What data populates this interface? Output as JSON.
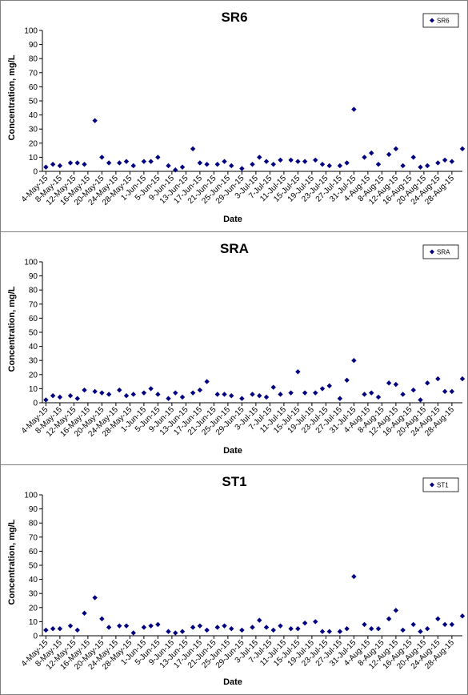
{
  "chart_data": [
    {
      "type": "scatter",
      "title": "SR6",
      "xlabel": "Date",
      "ylabel": "Concentration, mg/L",
      "ylim": [
        0,
        100
      ],
      "yticks": [
        0,
        10,
        20,
        30,
        40,
        50,
        60,
        70,
        80,
        90,
        100
      ],
      "xlim": [
        "2015-05-03",
        "2015-08-31"
      ],
      "xticks": [
        "4-May-15",
        "8-May-15",
        "12-May-15",
        "16-May-15",
        "20-May-15",
        "24-May-15",
        "28-May-15",
        "1-Jun-15",
        "5-Jun-15",
        "9-Jun-15",
        "13-Jun-15",
        "17-Jun-15",
        "21-Jun-15",
        "25-Jun-15",
        "29-Jun-15",
        "3-Jul-15",
        "7-Jul-15",
        "11-Jul-15",
        "15-Jul-15",
        "19-Jul-15",
        "23-Jul-15",
        "27-Jul-15",
        "31-Jul-15",
        "4-Aug-15",
        "8-Aug-15",
        "12-Aug-15",
        "16-Aug-15",
        "20-Aug-15",
        "24-Aug-15",
        "28-Aug-15"
      ],
      "legend": "top-right",
      "color": "#000080",
      "series": [
        {
          "name": "SR6",
          "points": [
            [
              "2015-05-04",
              3
            ],
            [
              "2015-05-06",
              5
            ],
            [
              "2015-05-08",
              4
            ],
            [
              "2015-05-11",
              6
            ],
            [
              "2015-05-13",
              6
            ],
            [
              "2015-05-15",
              5
            ],
            [
              "2015-05-18",
              36
            ],
            [
              "2015-05-20",
              10
            ],
            [
              "2015-05-22",
              6
            ],
            [
              "2015-05-25",
              6
            ],
            [
              "2015-05-27",
              7
            ],
            [
              "2015-05-29",
              4
            ],
            [
              "2015-06-01",
              7
            ],
            [
              "2015-06-03",
              7
            ],
            [
              "2015-06-05",
              10
            ],
            [
              "2015-06-08",
              4
            ],
            [
              "2015-06-10",
              1
            ],
            [
              "2015-06-12",
              3
            ],
            [
              "2015-06-15",
              16
            ],
            [
              "2015-06-17",
              6
            ],
            [
              "2015-06-19",
              5
            ],
            [
              "2015-06-22",
              5
            ],
            [
              "2015-06-24",
              7
            ],
            [
              "2015-06-26",
              4
            ],
            [
              "2015-06-29",
              2
            ],
            [
              "2015-07-02",
              5
            ],
            [
              "2015-07-04",
              10
            ],
            [
              "2015-07-06",
              7
            ],
            [
              "2015-07-08",
              5
            ],
            [
              "2015-07-10",
              8
            ],
            [
              "2015-07-13",
              8
            ],
            [
              "2015-07-15",
              7
            ],
            [
              "2015-07-17",
              7
            ],
            [
              "2015-07-20",
              8
            ],
            [
              "2015-07-22",
              5
            ],
            [
              "2015-07-24",
              4
            ],
            [
              "2015-07-27",
              4
            ],
            [
              "2015-07-29",
              6
            ],
            [
              "2015-07-31",
              44
            ],
            [
              "2015-08-03",
              10
            ],
            [
              "2015-08-05",
              13
            ],
            [
              "2015-08-07",
              5
            ],
            [
              "2015-08-10",
              12
            ],
            [
              "2015-08-12",
              16
            ],
            [
              "2015-08-14",
              4
            ],
            [
              "2015-08-17",
              10
            ],
            [
              "2015-08-19",
              3
            ],
            [
              "2015-08-21",
              4
            ],
            [
              "2015-08-24",
              6
            ],
            [
              "2015-08-26",
              8
            ],
            [
              "2015-08-28",
              7
            ],
            [
              "2015-08-31",
              16
            ]
          ]
        }
      ]
    },
    {
      "type": "scatter",
      "title": "SRA",
      "xlabel": "Date",
      "ylabel": "Concentration, mg/L",
      "ylim": [
        0,
        100
      ],
      "yticks": [
        0,
        10,
        20,
        30,
        40,
        50,
        60,
        70,
        80,
        90,
        100
      ],
      "xlim": [
        "2015-05-03",
        "2015-08-31"
      ],
      "xticks": [
        "4-May-15",
        "8-May-15",
        "12-May-15",
        "16-May-15",
        "20-May-15",
        "24-May-15",
        "28-May-15",
        "1-Jun-15",
        "5-Jun-15",
        "9-Jun-15",
        "13-Jun-15",
        "17-Jun-15",
        "21-Jun-15",
        "25-Jun-15",
        "29-Jun-15",
        "3-Jul-15",
        "7-Jul-15",
        "11-Jul-15",
        "15-Jul-15",
        "19-Jul-15",
        "23-Jul-15",
        "27-Jul-15",
        "31-Jul-15",
        "4-Aug-15",
        "8-Aug-15",
        "12-Aug-15",
        "16-Aug-15",
        "20-Aug-15",
        "24-Aug-15",
        "28-Aug-15"
      ],
      "legend": "top-right",
      "color": "#000080",
      "series": [
        {
          "name": "SRA",
          "points": [
            [
              "2015-05-04",
              2
            ],
            [
              "2015-05-06",
              5
            ],
            [
              "2015-05-08",
              4
            ],
            [
              "2015-05-11",
              5
            ],
            [
              "2015-05-13",
              3
            ],
            [
              "2015-05-15",
              9
            ],
            [
              "2015-05-18",
              8
            ],
            [
              "2015-05-20",
              7
            ],
            [
              "2015-05-22",
              6
            ],
            [
              "2015-05-25",
              9
            ],
            [
              "2015-05-27",
              5
            ],
            [
              "2015-05-29",
              6
            ],
            [
              "2015-06-01",
              7
            ],
            [
              "2015-06-03",
              10
            ],
            [
              "2015-06-05",
              6
            ],
            [
              "2015-06-08",
              3
            ],
            [
              "2015-06-10",
              7
            ],
            [
              "2015-06-12",
              4
            ],
            [
              "2015-06-15",
              7
            ],
            [
              "2015-06-17",
              9
            ],
            [
              "2015-06-19",
              15
            ],
            [
              "2015-06-22",
              6
            ],
            [
              "2015-06-24",
              6
            ],
            [
              "2015-06-26",
              5
            ],
            [
              "2015-06-29",
              3
            ],
            [
              "2015-07-02",
              6
            ],
            [
              "2015-07-04",
              5
            ],
            [
              "2015-07-06",
              4
            ],
            [
              "2015-07-08",
              11
            ],
            [
              "2015-07-10",
              6
            ],
            [
              "2015-07-13",
              7
            ],
            [
              "2015-07-15",
              22
            ],
            [
              "2015-07-17",
              7
            ],
            [
              "2015-07-20",
              7
            ],
            [
              "2015-07-22",
              10
            ],
            [
              "2015-07-24",
              12
            ],
            [
              "2015-07-27",
              3
            ],
            [
              "2015-07-29",
              16
            ],
            [
              "2015-07-31",
              30
            ],
            [
              "2015-08-03",
              6
            ],
            [
              "2015-08-05",
              7
            ],
            [
              "2015-08-07",
              4
            ],
            [
              "2015-08-10",
              14
            ],
            [
              "2015-08-12",
              13
            ],
            [
              "2015-08-14",
              6
            ],
            [
              "2015-08-17",
              9
            ],
            [
              "2015-08-19",
              2
            ],
            [
              "2015-08-21",
              14
            ],
            [
              "2015-08-24",
              17
            ],
            [
              "2015-08-26",
              8
            ],
            [
              "2015-08-28",
              8
            ],
            [
              "2015-08-31",
              17
            ]
          ]
        }
      ]
    },
    {
      "type": "scatter",
      "title": "ST1",
      "xlabel": "Date",
      "ylabel": "Concentration, mg/L",
      "ylim": [
        0,
        100
      ],
      "yticks": [
        0,
        10,
        20,
        30,
        40,
        50,
        60,
        70,
        80,
        90,
        100
      ],
      "xlim": [
        "2015-05-03",
        "2015-08-31"
      ],
      "xticks": [
        "4-May-15",
        "8-May-15",
        "12-May-15",
        "16-May-15",
        "20-May-15",
        "24-May-15",
        "28-May-15",
        "1-Jun-15",
        "5-Jun-15",
        "9-Jun-15",
        "13-Jun-15",
        "17-Jun-15",
        "21-Jun-15",
        "25-Jun-15",
        "29-Jun-15",
        "3-Jul-15",
        "7-Jul-15",
        "11-Jul-15",
        "15-Jul-15",
        "19-Jul-15",
        "23-Jul-15",
        "27-Jul-15",
        "31-Jul-15",
        "4-Aug-15",
        "8-Aug-15",
        "12-Aug-15",
        "16-Aug-15",
        "20-Aug-15",
        "24-Aug-15",
        "28-Aug-15"
      ],
      "legend": "top-right",
      "color": "#000080",
      "series": [
        {
          "name": "ST1",
          "points": [
            [
              "2015-05-04",
              4
            ],
            [
              "2015-05-06",
              5
            ],
            [
              "2015-05-08",
              5
            ],
            [
              "2015-05-11",
              7
            ],
            [
              "2015-05-13",
              4
            ],
            [
              "2015-05-15",
              16
            ],
            [
              "2015-05-18",
              27
            ],
            [
              "2015-05-20",
              12
            ],
            [
              "2015-05-22",
              6
            ],
            [
              "2015-05-25",
              7
            ],
            [
              "2015-05-27",
              7
            ],
            [
              "2015-05-29",
              2
            ],
            [
              "2015-06-01",
              6
            ],
            [
              "2015-06-03",
              7
            ],
            [
              "2015-06-05",
              8
            ],
            [
              "2015-06-08",
              3
            ],
            [
              "2015-06-10",
              2
            ],
            [
              "2015-06-12",
              3
            ],
            [
              "2015-06-15",
              6
            ],
            [
              "2015-06-17",
              7
            ],
            [
              "2015-06-19",
              4
            ],
            [
              "2015-06-22",
              6
            ],
            [
              "2015-06-24",
              7
            ],
            [
              "2015-06-26",
              5
            ],
            [
              "2015-06-29",
              4
            ],
            [
              "2015-07-02",
              6
            ],
            [
              "2015-07-04",
              11
            ],
            [
              "2015-07-06",
              6
            ],
            [
              "2015-07-08",
              4
            ],
            [
              "2015-07-10",
              7
            ],
            [
              "2015-07-13",
              5
            ],
            [
              "2015-07-15",
              5
            ],
            [
              "2015-07-17",
              9
            ],
            [
              "2015-07-20",
              10
            ],
            [
              "2015-07-22",
              3
            ],
            [
              "2015-07-24",
              3
            ],
            [
              "2015-07-27",
              3
            ],
            [
              "2015-07-29",
              5
            ],
            [
              "2015-07-31",
              42
            ],
            [
              "2015-08-03",
              8
            ],
            [
              "2015-08-05",
              5
            ],
            [
              "2015-08-07",
              5
            ],
            [
              "2015-08-10",
              12
            ],
            [
              "2015-08-12",
              18
            ],
            [
              "2015-08-14",
              4
            ],
            [
              "2015-08-17",
              8
            ],
            [
              "2015-08-19",
              3
            ],
            [
              "2015-08-21",
              5
            ],
            [
              "2015-08-24",
              12
            ],
            [
              "2015-08-26",
              8
            ],
            [
              "2015-08-28",
              8
            ],
            [
              "2015-08-31",
              14
            ]
          ]
        }
      ]
    }
  ]
}
